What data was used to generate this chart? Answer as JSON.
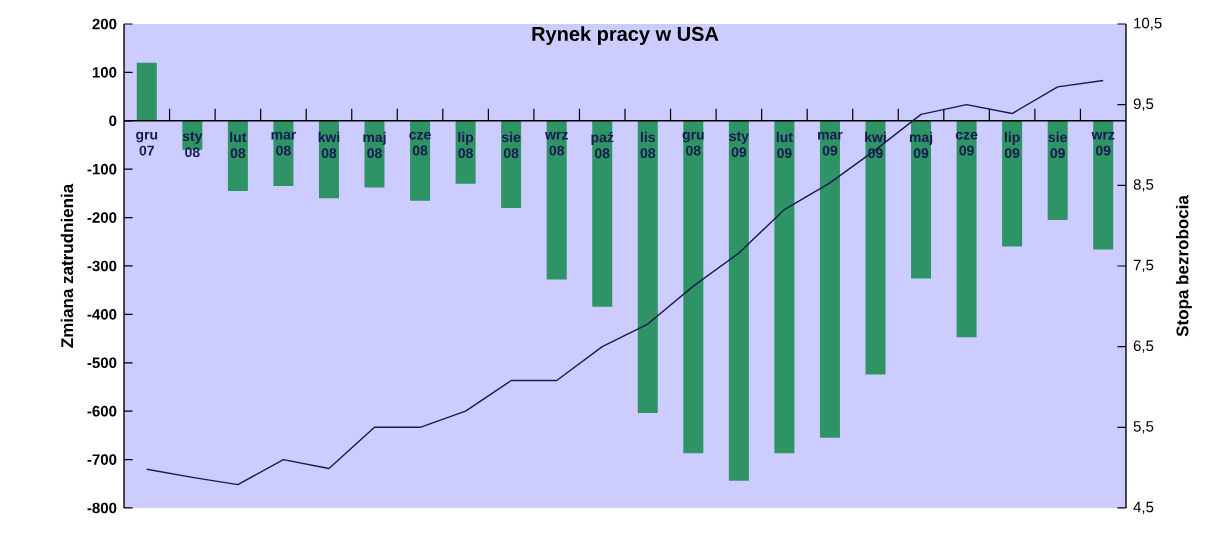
{
  "chart_data": {
    "type": "bar",
    "title": "Rynek pracy w USA",
    "ylabel": "Zmiana zatrudnienia",
    "y2label": "Stopa bezrobocia",
    "categories": [
      "gru 07",
      "sty 08",
      "lut 08",
      "mar 08",
      "kwi 08",
      "maj 08",
      "cze 08",
      "lip 08",
      "sie 08",
      "wrz 08",
      "paź 08",
      "lis 08",
      "gru 08",
      "sty 09",
      "lut 09",
      "mar 09",
      "kwi 09",
      "maj 09",
      "cze 09",
      "lip 09",
      "sie 09",
      "wrz 09"
    ],
    "series": [
      {
        "color": "#2e9466",
        "values": [
          120,
          -60,
          -145,
          -135,
          -160,
          -138,
          -165,
          -130,
          -180,
          -328,
          -384,
          -604,
          -687,
          -744,
          -687,
          -655,
          -524,
          -326,
          -447,
          -260,
          -205,
          -266
        ]
      },
      {
        "type": "line",
        "axis": "y2",
        "color": "#1a1a50",
        "values": [
          4.98,
          4.88,
          4.79,
          5.1,
          4.99,
          5.5,
          5.5,
          5.7,
          6.08,
          6.08,
          6.5,
          6.78,
          7.25,
          7.66,
          8.2,
          8.53,
          8.94,
          9.38,
          9.5,
          9.39,
          9.72,
          9.8
        ]
      }
    ],
    "ylim": [
      -800,
      200
    ],
    "yticks": [
      -800,
      -700,
      -600,
      -500,
      -400,
      -300,
      -200,
      -100,
      0,
      100,
      200
    ],
    "y2lim": [
      4.5,
      10.5
    ],
    "y2ticks": [
      {
        "value": 4.5,
        "label": "4,5"
      },
      {
        "value": 5.5,
        "label": "5,5"
      },
      {
        "value": 6.5,
        "label": "6,5"
      },
      {
        "value": 7.5,
        "label": "7,5"
      },
      {
        "value": 8.5,
        "label": "8,5"
      },
      {
        "value": 9.5,
        "label": "9,5"
      },
      {
        "value": 10.5,
        "label": "10,5"
      }
    ]
  }
}
